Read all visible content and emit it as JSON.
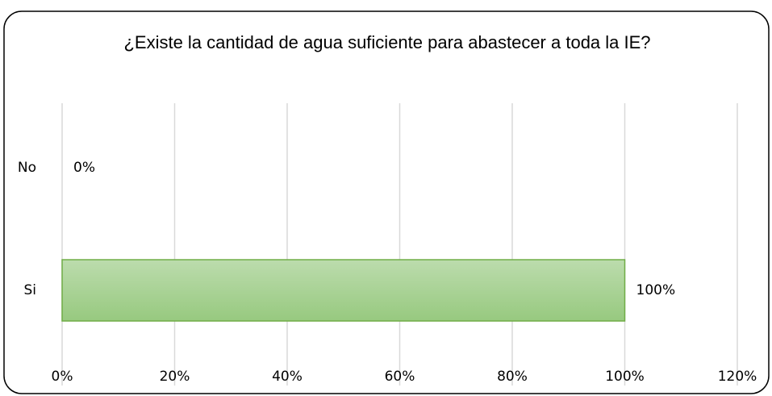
{
  "chart_data": {
    "type": "hbar",
    "title": "¿Existe la cantidad de agua suficiente para abastecer a toda la IE?",
    "categories": [
      "No",
      "Si"
    ],
    "values": [
      0,
      100
    ],
    "value_labels": [
      "0%",
      "100%"
    ],
    "color": "#a9d18e",
    "xlim": [
      0,
      120
    ],
    "xticks": [
      {
        "value": 0,
        "label": "0%"
      },
      {
        "value": 20,
        "label": "20%"
      },
      {
        "value": 40,
        "label": "40%"
      },
      {
        "value": 60,
        "label": "60%"
      },
      {
        "value": 80,
        "label": "80%"
      },
      {
        "value": 100,
        "label": "100%"
      },
      {
        "value": 120,
        "label": "120%"
      }
    ],
    "grid": true
  }
}
